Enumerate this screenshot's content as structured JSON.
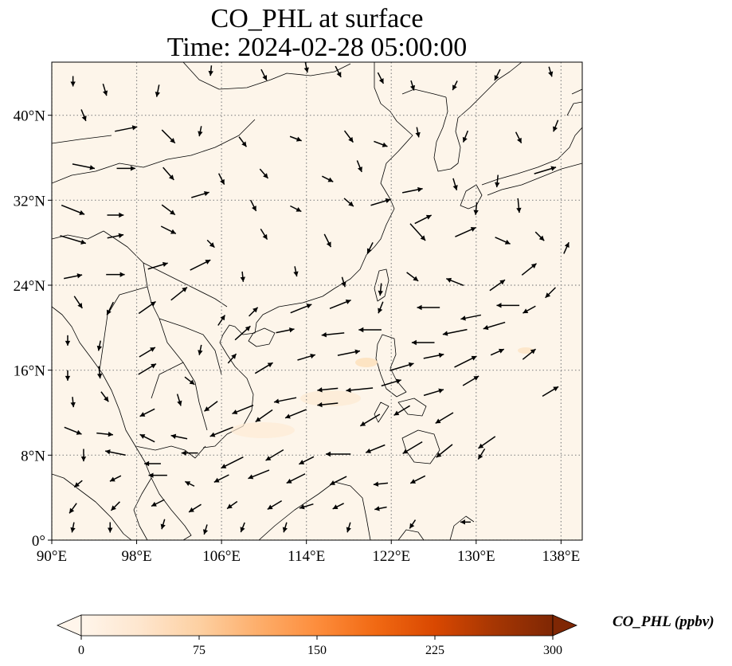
{
  "title": {
    "line1": "CO_PHL at surface",
    "line2": "Time: 2024-02-28 05:00:00"
  },
  "map": {
    "background_color": "#fdf5ea",
    "grid_style": "dotted",
    "lon_range": [
      90,
      140
    ],
    "lat_range": [
      0,
      45
    ],
    "lon_ticks": [
      {
        "value": 90,
        "label": "90°E"
      },
      {
        "value": 98,
        "label": "98°E"
      },
      {
        "value": 106,
        "label": "106°E"
      },
      {
        "value": 114,
        "label": "114°E"
      },
      {
        "value": 122,
        "label": "122°E"
      },
      {
        "value": 130,
        "label": "130°E"
      },
      {
        "value": 138,
        "label": "138°E"
      }
    ],
    "lat_ticks": [
      {
        "value": 0,
        "label": "0°"
      },
      {
        "value": 8,
        "label": "8°N"
      },
      {
        "value": 16,
        "label": "16°N"
      },
      {
        "value": 24,
        "label": "24°N"
      },
      {
        "value": 32,
        "label": "32°N"
      },
      {
        "value": 40,
        "label": "40°N"
      }
    ],
    "wind_vectors": [
      [
        92,
        43.2,
        0,
        -1,
        0.5
      ],
      [
        95,
        42.4,
        0.3,
        -1,
        0.6
      ],
      [
        100,
        42.3,
        -0.2,
        -1,
        0.6
      ],
      [
        105,
        44.2,
        -0.1,
        -1,
        0.5
      ],
      [
        110,
        43.8,
        0.5,
        -1,
        0.6
      ],
      [
        114,
        44.5,
        0.2,
        -1,
        0.5
      ],
      [
        117,
        44.1,
        0.5,
        -1,
        0.6
      ],
      [
        121,
        43.5,
        0.5,
        -1,
        0.6
      ],
      [
        124,
        42.8,
        0.3,
        -1,
        0.5
      ],
      [
        128,
        42.8,
        -0.5,
        -1,
        0.5
      ],
      [
        132,
        43.8,
        -0.5,
        -1,
        0.6
      ],
      [
        137,
        44.1,
        0.3,
        -1,
        0.5
      ],
      [
        93,
        40,
        0.4,
        -1,
        0.6
      ],
      [
        97,
        38.7,
        1,
        0.2,
        1.1
      ],
      [
        101,
        38,
        0.7,
        -0.7,
        0.9
      ],
      [
        104,
        38.5,
        -0.2,
        -1,
        0.5
      ],
      [
        108,
        37.5,
        0.6,
        -0.8,
        0.6
      ],
      [
        113,
        37.8,
        0.8,
        -0.3,
        0.6
      ],
      [
        118,
        38,
        0.6,
        -0.8,
        0.7
      ],
      [
        121,
        37.3,
        0.8,
        -0.3,
        0.7
      ],
      [
        124.5,
        38.4,
        0.2,
        -1,
        0.5
      ],
      [
        129,
        38,
        -0.4,
        -1,
        0.6
      ],
      [
        134,
        37.9,
        0.5,
        -1,
        0.6
      ],
      [
        137.5,
        39,
        -0.4,
        -1,
        0.6
      ],
      [
        93,
        35.2,
        1,
        -0.2,
        1.1
      ],
      [
        97,
        35,
        1,
        0,
        0.9
      ],
      [
        101,
        34.5,
        0.7,
        -0.8,
        0.8
      ],
      [
        106,
        34,
        0.5,
        -1,
        0.6
      ],
      [
        110,
        34.5,
        0.6,
        -0.7,
        0.6
      ],
      [
        116,
        34,
        0.8,
        -0.4,
        0.6
      ],
      [
        119,
        35.2,
        0.4,
        -1,
        0.6
      ],
      [
        124,
        32.9,
        1,
        0.2,
        1.0
      ],
      [
        128,
        33.5,
        0.3,
        -1,
        0.6
      ],
      [
        132,
        33.8,
        -0.1,
        -1,
        0.6
      ],
      [
        136.5,
        34.8,
        1,
        0.3,
        1.1
      ],
      [
        92,
        31.1,
        1,
        -0.4,
        1.2
      ],
      [
        96,
        30.6,
        1,
        0,
        0.8
      ],
      [
        101,
        31.1,
        0.8,
        -0.6,
        0.8
      ],
      [
        104,
        32.5,
        1,
        0.3,
        0.9
      ],
      [
        109,
        31.5,
        0.5,
        -1,
        0.6
      ],
      [
        113,
        31.2,
        0.8,
        -0.4,
        0.6
      ],
      [
        118,
        31.8,
        0.7,
        -0.6,
        0.6
      ],
      [
        121,
        31.8,
        1,
        0.3,
        1.0
      ],
      [
        125,
        30.2,
        1,
        0.5,
        0.9
      ],
      [
        130,
        31.2,
        -0.1,
        -1,
        0.6
      ],
      [
        134,
        31.5,
        0.1,
        -1,
        0.7
      ],
      [
        92,
        28.3,
        1,
        -0.3,
        1.3
      ],
      [
        96,
        28.6,
        1,
        0.2,
        0.8
      ],
      [
        101,
        29.2,
        0.8,
        -0.4,
        0.8
      ],
      [
        105,
        27.9,
        0.6,
        -0.6,
        0.5
      ],
      [
        110,
        28.8,
        0.5,
        -0.8,
        0.6
      ],
      [
        116,
        28.2,
        0.5,
        -1,
        0.7
      ],
      [
        120,
        27.5,
        -0.5,
        -1,
        0.6
      ],
      [
        124.5,
        29,
        0.9,
        -1,
        1.1
      ],
      [
        129,
        29,
        0.9,
        0.4,
        1.1
      ],
      [
        132.5,
        28.2,
        0.9,
        -0.4,
        0.8
      ],
      [
        136,
        28.6,
        0.7,
        -0.7,
        0.6
      ],
      [
        92,
        24.8,
        1,
        0.2,
        0.9
      ],
      [
        96,
        25,
        1,
        0,
        0.9
      ],
      [
        100,
        25.8,
        1,
        0.3,
        1.0
      ],
      [
        104,
        25.9,
        1,
        0.5,
        1.1
      ],
      [
        108,
        24.8,
        0.1,
        -1,
        0.5
      ],
      [
        113,
        25.3,
        0.2,
        -1,
        0.5
      ],
      [
        117.5,
        24.3,
        0.3,
        -1,
        0.5
      ],
      [
        121,
        23.6,
        -0.1,
        -1,
        0.6
      ],
      [
        124,
        24.8,
        0.8,
        -0.6,
        0.7
      ],
      [
        128,
        24.3,
        -1,
        0.4,
        0.9
      ],
      [
        132,
        24,
        1,
        0.7,
        0.9
      ],
      [
        135,
        25.5,
        1,
        0.8,
        0.9
      ],
      [
        138.5,
        27.5,
        0.4,
        0.9,
        0.6
      ],
      [
        92.5,
        22.4,
        0.6,
        -0.9,
        0.7
      ],
      [
        95.5,
        21.8,
        -0.5,
        -1,
        0.7
      ],
      [
        99,
        21.9,
        1,
        0.7,
        1.0
      ],
      [
        102,
        23.2,
        1,
        0.8,
        1.0
      ],
      [
        106,
        20.7,
        0.6,
        0.9,
        0.6
      ],
      [
        109,
        21.5,
        0.7,
        0.7,
        0.6
      ],
      [
        113.5,
        21.8,
        1,
        0.4,
        1.1
      ],
      [
        117.2,
        22.2,
        1,
        0.4,
        1.1
      ],
      [
        121,
        21.9,
        -0.4,
        -1,
        0.6
      ],
      [
        125.5,
        21.9,
        -1,
        0,
        1.1
      ],
      [
        129.5,
        21,
        -1,
        -0.2,
        1.0
      ],
      [
        133,
        22.1,
        -1,
        0,
        1.1
      ],
      [
        137,
        23.3,
        -0.6,
        -0.6,
        0.7
      ],
      [
        91.5,
        18.8,
        0,
        -1,
        0.5
      ],
      [
        94.5,
        18.3,
        -0.2,
        -1,
        0.5
      ],
      [
        99,
        17.7,
        1,
        0.6,
        0.9
      ],
      [
        104,
        17.9,
        -0.2,
        -1,
        0.5
      ],
      [
        108,
        19.5,
        1,
        0.9,
        1.0
      ],
      [
        112,
        19.7,
        1,
        0.2,
        0.9
      ],
      [
        116.5,
        19.4,
        -1,
        -0.1,
        1.1
      ],
      [
        120,
        19.8,
        -1,
        0,
        1.1
      ],
      [
        125,
        18.6,
        -1,
        0,
        1.1
      ],
      [
        128,
        19.6,
        -1,
        -0.2,
        1.2
      ],
      [
        131.7,
        20.2,
        -1,
        -0.3,
        1.1
      ],
      [
        135,
        21.7,
        -0.9,
        -0.5,
        0.7
      ],
      [
        91.5,
        15.5,
        0,
        -1,
        0.5
      ],
      [
        94.5,
        15.8,
        0.1,
        -1,
        0.6
      ],
      [
        99,
        16.1,
        1,
        0.6,
        1.0
      ],
      [
        103,
        15,
        0.9,
        -0.7,
        0.6
      ],
      [
        107,
        17.1,
        0.7,
        0.8,
        0.6
      ],
      [
        110,
        16.2,
        1,
        0.6,
        1.0
      ],
      [
        114,
        17.2,
        1,
        0.3,
        0.9
      ],
      [
        118,
        17.6,
        1,
        0.2,
        1.1
      ],
      [
        123,
        16.3,
        1,
        0.3,
        1.2
      ],
      [
        126,
        17.3,
        1,
        0.2,
        1.0
      ],
      [
        129,
        16.8,
        1,
        0.5,
        1.2
      ],
      [
        132,
        17.7,
        0.9,
        0.4,
        0.7
      ],
      [
        135,
        17.5,
        1,
        0.8,
        0.8
      ],
      [
        92,
        13,
        0.1,
        -1,
        0.5
      ],
      [
        95,
        13.5,
        0.6,
        -0.8,
        0.6
      ],
      [
        99,
        12,
        -1,
        -0.5,
        0.8
      ],
      [
        102,
        13.2,
        0.3,
        -1,
        0.6
      ],
      [
        105,
        12.6,
        -0.8,
        -0.6,
        0.8
      ],
      [
        108,
        12.3,
        -1,
        -0.4,
        1.1
      ],
      [
        112,
        13.2,
        -1,
        -0.2,
        1.1
      ],
      [
        116,
        14.2,
        -1,
        -0.1,
        1.0
      ],
      [
        119,
        14.2,
        -1,
        -0.1,
        1.3
      ],
      [
        122,
        14.8,
        1,
        0.3,
        1.0
      ],
      [
        126,
        13.9,
        1,
        0.3,
        1.0
      ],
      [
        129.5,
        15,
        1,
        0.6,
        0.9
      ],
      [
        137,
        14,
        1,
        0.6,
        0.9
      ],
      [
        92,
        10.3,
        1,
        -0.4,
        0.9
      ],
      [
        95,
        10,
        1,
        -0.1,
        0.8
      ],
      [
        99,
        9.6,
        -1,
        0.5,
        0.8
      ],
      [
        102,
        9.7,
        -1,
        0.2,
        0.8
      ],
      [
        106,
        10.2,
        -1,
        -0.4,
        1.2
      ],
      [
        110,
        11.7,
        -1,
        -0.7,
        1.0
      ],
      [
        113,
        11.9,
        -1,
        -0.4,
        1.1
      ],
      [
        116,
        12.8,
        -1,
        -0.1,
        1.0
      ],
      [
        120,
        11.3,
        -1,
        -0.6,
        1.1
      ],
      [
        123,
        12.2,
        -1,
        -0.6,
        0.9
      ],
      [
        127,
        11.5,
        -1,
        -0.6,
        1.0
      ],
      [
        131,
        9.2,
        -1,
        -0.7,
        1.0
      ],
      [
        93,
        8,
        0,
        -1,
        0.6
      ],
      [
        96,
        8.2,
        -1,
        0.2,
        1.0
      ],
      [
        99.5,
        7.2,
        -1,
        0,
        0.8
      ],
      [
        103,
        8.2,
        -1,
        0,
        0.8
      ],
      [
        107,
        7.3,
        -1,
        -0.5,
        1.2
      ],
      [
        111,
        8,
        -1,
        -0.6,
        1.0
      ],
      [
        114,
        7.5,
        -1,
        -0.5,
        0.8
      ],
      [
        117,
        8.1,
        -1,
        0,
        1.2
      ],
      [
        120.5,
        8.6,
        -1,
        -0.4,
        1.0
      ],
      [
        124,
        8.7,
        -1,
        -0.6,
        1.1
      ],
      [
        127,
        8.4,
        -1,
        -0.8,
        1.0
      ],
      [
        130.5,
        8.1,
        -0.5,
        -0.8,
        0.6
      ],
      [
        92.5,
        5.3,
        -0.6,
        -0.5,
        0.5
      ],
      [
        96,
        5.8,
        -0.6,
        -0.3,
        0.6
      ],
      [
        100,
        6.1,
        -1,
        0,
        0.9
      ],
      [
        103,
        5.3,
        -1,
        0.5,
        0.5
      ],
      [
        106,
        5.8,
        -1,
        -0.5,
        0.8
      ],
      [
        109.5,
        6.2,
        -1,
        -0.4,
        1.1
      ],
      [
        113,
        5.8,
        -1,
        -0.5,
        1.0
      ],
      [
        117,
        5.6,
        -1,
        -0.5,
        0.9
      ],
      [
        121,
        5.3,
        -1,
        -0.1,
        0.7
      ],
      [
        124.5,
        5.7,
        -1,
        -0.5,
        0.8
      ],
      [
        92,
        3,
        -0.5,
        -0.7,
        0.6
      ],
      [
        96,
        3.2,
        -0.5,
        -0.5,
        0.6
      ],
      [
        100,
        3.5,
        -0.8,
        -0.4,
        0.7
      ],
      [
        103.5,
        3,
        -0.8,
        -0.5,
        0.7
      ],
      [
        107,
        3.3,
        -1,
        -0.7,
        0.6
      ],
      [
        111,
        3.3,
        -1,
        -0.6,
        0.8
      ],
      [
        114,
        3.2,
        -1,
        -0.3,
        0.7
      ],
      [
        117,
        3.2,
        -1,
        -0.5,
        0.6
      ],
      [
        121,
        3,
        -1,
        -0.2,
        0.6
      ],
      [
        92,
        1.2,
        -0.2,
        -1,
        0.5
      ],
      [
        95.5,
        1.2,
        0,
        -1,
        0.5
      ],
      [
        100.5,
        1.5,
        -0.3,
        -1,
        0.5
      ],
      [
        104.5,
        1,
        -0.3,
        -1,
        0.5
      ],
      [
        108,
        1.2,
        -0.4,
        -1,
        0.5
      ],
      [
        112,
        1.2,
        -0.3,
        -1,
        0.5
      ],
      [
        118,
        1.2,
        -0.3,
        -1,
        0.5
      ],
      [
        124,
        1.5,
        -0.4,
        -0.6,
        0.5
      ],
      [
        129,
        1.7,
        -1,
        0,
        0.5
      ]
    ]
  },
  "colorbar": {
    "title": "CO_PHL (ppbv)",
    "min": 0,
    "max": 300,
    "extend": "both",
    "ticks": [
      {
        "value": 0,
        "label": "0"
      },
      {
        "value": 75,
        "label": "75"
      },
      {
        "value": 150,
        "label": "150"
      },
      {
        "value": 225,
        "label": "225"
      },
      {
        "value": 300,
        "label": "300"
      }
    ],
    "colors": [
      "#fff5eb",
      "#fee6ce",
      "#fdd0a2",
      "#fdae6b",
      "#fd8d3c",
      "#f16913",
      "#d94801",
      "#a63603",
      "#7f2704"
    ]
  }
}
